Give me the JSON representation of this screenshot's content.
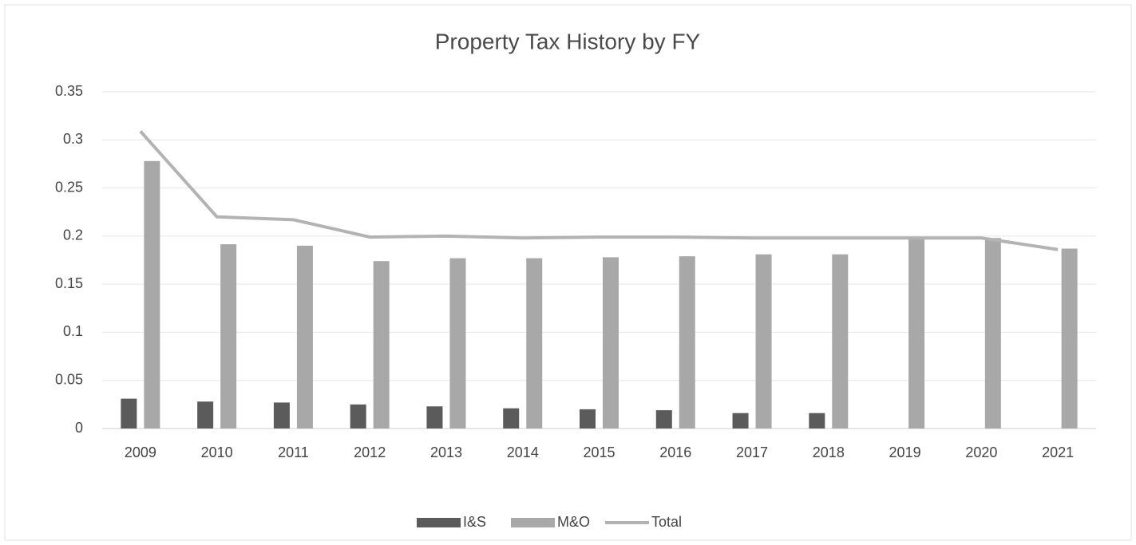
{
  "chart_data": {
    "type": "bar",
    "title": "Property Tax History by FY",
    "categories": [
      "2009",
      "2010",
      "2011",
      "2012",
      "2013",
      "2014",
      "2015",
      "2016",
      "2017",
      "2018",
      "2019",
      "2020",
      "2021"
    ],
    "series": [
      {
        "name": "I&S",
        "type": "bar",
        "color": "#5b5b5b",
        "values": [
          0.031,
          0.028,
          0.027,
          0.025,
          0.023,
          0.021,
          0.02,
          0.019,
          0.016,
          0.016,
          0,
          0,
          0
        ]
      },
      {
        "name": "M&O",
        "type": "bar",
        "color": "#a8a8a8",
        "values": [
          0.278,
          0.1915,
          0.19,
          0.174,
          0.177,
          0.177,
          0.178,
          0.179,
          0.181,
          0.181,
          0.198,
          0.198,
          0.187
        ]
      },
      {
        "name": "Total",
        "type": "line",
        "color": "#b3b3b3",
        "values": [
          0.309,
          0.22,
          0.217,
          0.199,
          0.2,
          0.198,
          0.199,
          0.199,
          0.198,
          0.198,
          0.198,
          0.198,
          0.186
        ]
      }
    ],
    "ylim": [
      0,
      0.35
    ],
    "yticks": [
      0,
      0.05,
      0.1,
      0.15,
      0.2,
      0.25,
      0.3,
      0.35
    ],
    "grid": true,
    "legend": "bottom"
  }
}
